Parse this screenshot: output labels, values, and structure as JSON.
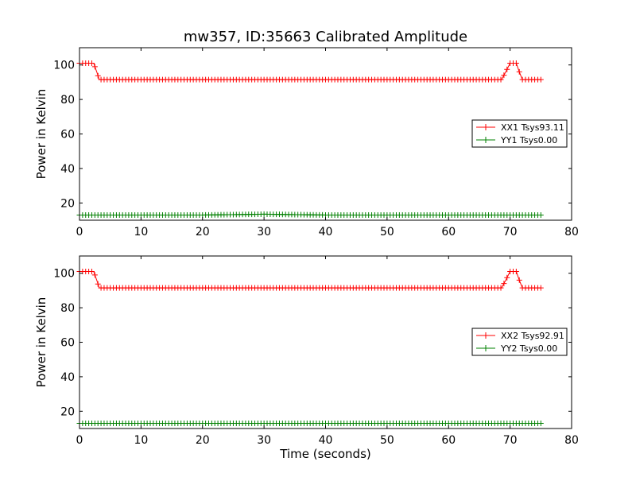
{
  "chart_data": [
    {
      "type": "line",
      "title": "mw357, ID:35663 Calibrated Amplitude",
      "xlabel": "",
      "ylabel": "Power in Kelvin",
      "xlim": [
        0,
        80
      ],
      "ylim": [
        10,
        110
      ],
      "xticks": [
        "0",
        "10",
        "20",
        "30",
        "40",
        "50",
        "60",
        "70",
        "80"
      ],
      "yticks": [
        "20",
        "40",
        "60",
        "80",
        "100"
      ],
      "grid": false,
      "legend_position": "center-right",
      "series": [
        {
          "name": "XX1 Tsys93.11",
          "color": "#ff0000",
          "marker": "plus",
          "x": [
            0,
            2.3,
            2.8,
            3.2,
            68.6,
            69.3,
            70.0,
            71.0,
            71.5,
            72.0,
            75
          ],
          "y": [
            101,
            101,
            96,
            91.5,
            91.5,
            96,
            101,
            101,
            96,
            91.5,
            91.5
          ]
        },
        {
          "name": "YY1 Tsys0.00",
          "color": "#008000",
          "marker": "plus",
          "x": [
            0,
            10,
            20,
            30,
            40,
            50,
            60,
            70,
            75
          ],
          "y": [
            13,
            13,
            13,
            13.5,
            13,
            13,
            13,
            13,
            13
          ]
        }
      ]
    },
    {
      "type": "line",
      "title": "",
      "xlabel": "Time (seconds)",
      "ylabel": "Power in Kelvin",
      "xlim": [
        0,
        80
      ],
      "ylim": [
        10,
        110
      ],
      "xticks": [
        "0",
        "10",
        "20",
        "30",
        "40",
        "50",
        "60",
        "70",
        "80"
      ],
      "yticks": [
        "20",
        "40",
        "60",
        "80",
        "100"
      ],
      "grid": false,
      "legend_position": "center-right",
      "series": [
        {
          "name": "XX2 Tsys92.91",
          "color": "#ff0000",
          "marker": "plus",
          "x": [
            0,
            2.3,
            2.8,
            3.2,
            68.6,
            69.3,
            70.0,
            71.0,
            71.5,
            72.0,
            75
          ],
          "y": [
            101,
            101,
            96,
            91.5,
            91.5,
            96,
            101,
            101,
            96,
            91.5,
            91.5
          ]
        },
        {
          "name": "YY2 Tsys0.00",
          "color": "#008000",
          "marker": "plus",
          "x": [
            0,
            10,
            20,
            30,
            40,
            50,
            60,
            70,
            75
          ],
          "y": [
            13,
            13,
            13,
            13,
            13,
            13,
            13,
            13,
            13
          ]
        }
      ]
    }
  ]
}
